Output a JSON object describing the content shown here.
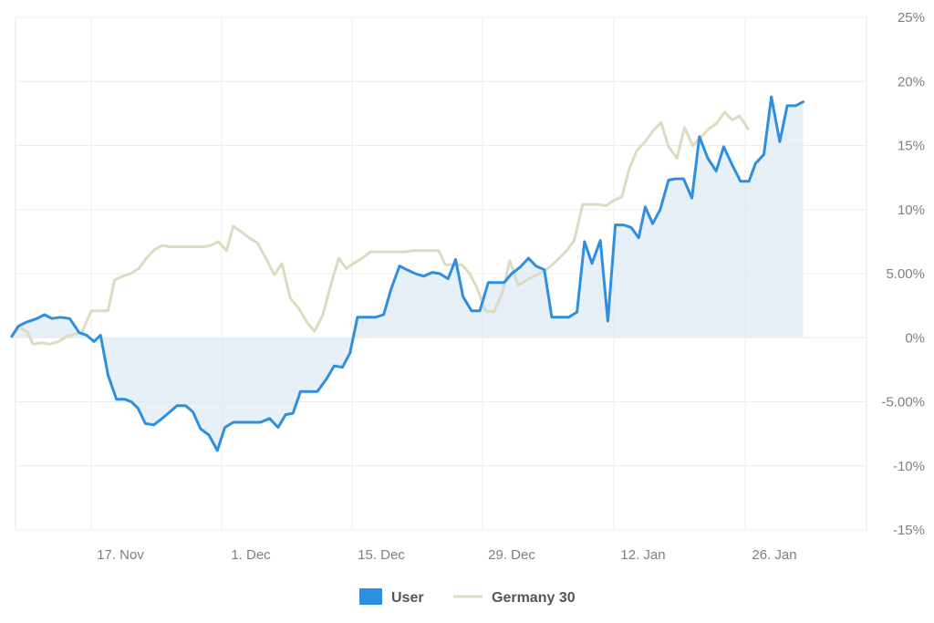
{
  "chart_data": {
    "type": "line",
    "x_ticks": [
      "17. Nov",
      "1. Dec",
      "15. Dec",
      "29. Dec",
      "12. Jan",
      "26. Jan"
    ],
    "y_ticks": [
      "25%",
      "20%",
      "15%",
      "10%",
      "5.00%",
      "0%",
      "-5.00%",
      "-10%",
      "-15%"
    ],
    "ylim": [
      -15,
      25
    ],
    "grid": true,
    "y_axis_side": "right",
    "legend_position": "bottom-center",
    "series": [
      {
        "name": "User",
        "color": "#2f8fdf",
        "fill": "area-to-zero",
        "points": [
          [
            -8.5,
            0.1
          ],
          [
            -7.8,
            0.9
          ],
          [
            -7.0,
            1.2
          ],
          [
            -5.8,
            1.5
          ],
          [
            -5.0,
            1.8
          ],
          [
            -4.2,
            1.5
          ],
          [
            -3.3,
            1.6
          ],
          [
            -2.3,
            1.5
          ],
          [
            -1.3,
            0.4
          ],
          [
            -0.5,
            0.2
          ],
          [
            0.3,
            -0.3
          ],
          [
            1.0,
            0.2
          ],
          [
            1.8,
            -2.9
          ],
          [
            2.7,
            -4.8
          ],
          [
            3.6,
            -4.8
          ],
          [
            4.3,
            -5.0
          ],
          [
            5.0,
            -5.5
          ],
          [
            5.8,
            -6.7
          ],
          [
            6.7,
            -6.8
          ],
          [
            7.6,
            -6.3
          ],
          [
            8.4,
            -5.8
          ],
          [
            9.2,
            -5.3
          ],
          [
            10.1,
            -5.3
          ],
          [
            10.9,
            -5.8
          ],
          [
            11.7,
            -7.1
          ],
          [
            12.6,
            -7.6
          ],
          [
            13.5,
            -8.8
          ],
          [
            14.3,
            -7.0
          ],
          [
            15.2,
            -6.6
          ],
          [
            16.2,
            -6.6
          ],
          [
            17.2,
            -6.6
          ],
          [
            18.1,
            -6.6
          ],
          [
            19.1,
            -6.3
          ],
          [
            20.0,
            -7.0
          ],
          [
            20.8,
            -6.0
          ],
          [
            21.6,
            -5.9
          ],
          [
            22.4,
            -4.2
          ],
          [
            23.3,
            -4.2
          ],
          [
            24.2,
            -4.2
          ],
          [
            25.2,
            -3.2
          ],
          [
            26.0,
            -2.2
          ],
          [
            26.9,
            -2.3
          ],
          [
            27.7,
            -1.2
          ],
          [
            28.5,
            1.6
          ],
          [
            29.4,
            1.6
          ],
          [
            30.4,
            1.6
          ],
          [
            31.3,
            1.8
          ],
          [
            32.1,
            3.8
          ],
          [
            33.0,
            5.6
          ],
          [
            33.8,
            5.3
          ],
          [
            34.7,
            5.0
          ],
          [
            35.6,
            4.8
          ],
          [
            36.5,
            5.1
          ],
          [
            37.3,
            5.0
          ],
          [
            38.2,
            4.6
          ],
          [
            39.0,
            6.1
          ],
          [
            39.8,
            3.2
          ],
          [
            40.7,
            2.1
          ],
          [
            41.6,
            2.1
          ],
          [
            42.5,
            4.3
          ],
          [
            43.3,
            4.3
          ],
          [
            44.2,
            4.3
          ],
          [
            45.0,
            5.0
          ],
          [
            45.9,
            5.5
          ],
          [
            46.8,
            6.2
          ],
          [
            47.6,
            5.6
          ],
          [
            48.5,
            5.3
          ],
          [
            49.3,
            1.6
          ],
          [
            50.2,
            1.6
          ],
          [
            51.1,
            1.6
          ],
          [
            52.0,
            2.0
          ],
          [
            52.8,
            7.5
          ],
          [
            53.6,
            5.8
          ],
          [
            54.5,
            7.6
          ],
          [
            55.3,
            1.3
          ],
          [
            56.1,
            8.8
          ],
          [
            57.0,
            8.8
          ],
          [
            57.8,
            8.6
          ],
          [
            58.6,
            7.8
          ],
          [
            59.3,
            10.2
          ],
          [
            60.1,
            8.9
          ],
          [
            60.9,
            10.0
          ],
          [
            61.8,
            12.3
          ],
          [
            62.6,
            12.4
          ],
          [
            63.4,
            12.4
          ],
          [
            64.3,
            10.9
          ],
          [
            65.1,
            15.7
          ],
          [
            66.0,
            14.0
          ],
          [
            66.9,
            13.0
          ],
          [
            67.7,
            14.9
          ],
          [
            68.6,
            13.5
          ],
          [
            69.5,
            12.2
          ],
          [
            70.4,
            12.2
          ],
          [
            71.1,
            13.6
          ],
          [
            72.0,
            14.3
          ],
          [
            72.8,
            18.8
          ],
          [
            73.7,
            15.3
          ],
          [
            74.5,
            18.1
          ],
          [
            75.4,
            18.1
          ],
          [
            76.2,
            18.4
          ]
        ]
      },
      {
        "name": "Germany 30",
        "color": "#dcdcc2",
        "fill": "none",
        "points": [
          [
            -8.5,
            0.1
          ],
          [
            -7.7,
            0.8
          ],
          [
            -6.9,
            0.5
          ],
          [
            -6.2,
            -0.5
          ],
          [
            -5.3,
            -0.4
          ],
          [
            -4.4,
            -0.5
          ],
          [
            -3.5,
            -0.3
          ],
          [
            -2.6,
            0.1
          ],
          [
            -1.7,
            0.3
          ],
          [
            -1.0,
            0.4
          ],
          [
            0.0,
            2.1
          ],
          [
            0.9,
            2.1
          ],
          [
            1.8,
            2.1
          ],
          [
            2.5,
            4.5
          ],
          [
            3.4,
            4.8
          ],
          [
            4.2,
            5.0
          ],
          [
            5.1,
            5.4
          ],
          [
            5.9,
            6.2
          ],
          [
            6.8,
            6.9
          ],
          [
            7.6,
            7.2
          ],
          [
            8.4,
            7.1
          ],
          [
            9.3,
            7.1
          ],
          [
            10.2,
            7.1
          ],
          [
            11.1,
            7.1
          ],
          [
            12.0,
            7.1
          ],
          [
            12.8,
            7.2
          ],
          [
            13.6,
            7.5
          ],
          [
            14.5,
            6.8
          ],
          [
            15.2,
            8.7
          ],
          [
            16.0,
            8.3
          ],
          [
            16.9,
            7.8
          ],
          [
            17.8,
            7.4
          ],
          [
            18.7,
            6.2
          ],
          [
            19.6,
            4.9
          ],
          [
            20.4,
            5.8
          ],
          [
            21.3,
            3.1
          ],
          [
            22.2,
            2.3
          ],
          [
            23.1,
            1.2
          ],
          [
            23.9,
            0.5
          ],
          [
            24.8,
            1.8
          ],
          [
            25.6,
            4.0
          ],
          [
            26.5,
            6.2
          ],
          [
            27.3,
            5.4
          ],
          [
            28.1,
            5.8
          ],
          [
            29.0,
            6.2
          ],
          [
            29.9,
            6.7
          ],
          [
            30.8,
            6.7
          ],
          [
            31.7,
            6.7
          ],
          [
            32.7,
            6.7
          ],
          [
            33.6,
            6.7
          ],
          [
            34.5,
            6.8
          ],
          [
            35.4,
            6.8
          ],
          [
            36.4,
            6.8
          ],
          [
            37.2,
            6.8
          ],
          [
            37.9,
            5.7
          ],
          [
            38.8,
            5.7
          ],
          [
            39.7,
            5.7
          ],
          [
            40.5,
            5.0
          ],
          [
            41.3,
            3.9
          ],
          [
            42.2,
            2.1
          ],
          [
            43.1,
            2.0
          ],
          [
            44.0,
            3.5
          ],
          [
            44.8,
            6.0
          ],
          [
            45.7,
            4.1
          ],
          [
            46.6,
            4.5
          ],
          [
            47.4,
            4.8
          ],
          [
            48.3,
            5.1
          ],
          [
            49.2,
            5.6
          ],
          [
            50.1,
            6.2
          ],
          [
            50.9,
            6.8
          ],
          [
            51.7,
            7.6
          ],
          [
            52.6,
            10.4
          ],
          [
            53.4,
            10.4
          ],
          [
            54.3,
            10.4
          ],
          [
            55.1,
            10.3
          ],
          [
            55.9,
            10.7
          ],
          [
            56.8,
            11.0
          ],
          [
            57.6,
            13.2
          ],
          [
            58.4,
            14.6
          ],
          [
            59.3,
            15.3
          ],
          [
            60.2,
            16.2
          ],
          [
            61.0,
            16.8
          ],
          [
            61.8,
            14.9
          ],
          [
            62.7,
            14.0
          ],
          [
            63.5,
            16.4
          ],
          [
            64.4,
            15.0
          ],
          [
            65.2,
            15.6
          ],
          [
            66.1,
            16.3
          ],
          [
            66.9,
            16.7
          ],
          [
            67.8,
            17.6
          ],
          [
            68.6,
            17.0
          ],
          [
            69.4,
            17.3
          ],
          [
            70.3,
            16.3
          ]
        ]
      }
    ]
  }
}
